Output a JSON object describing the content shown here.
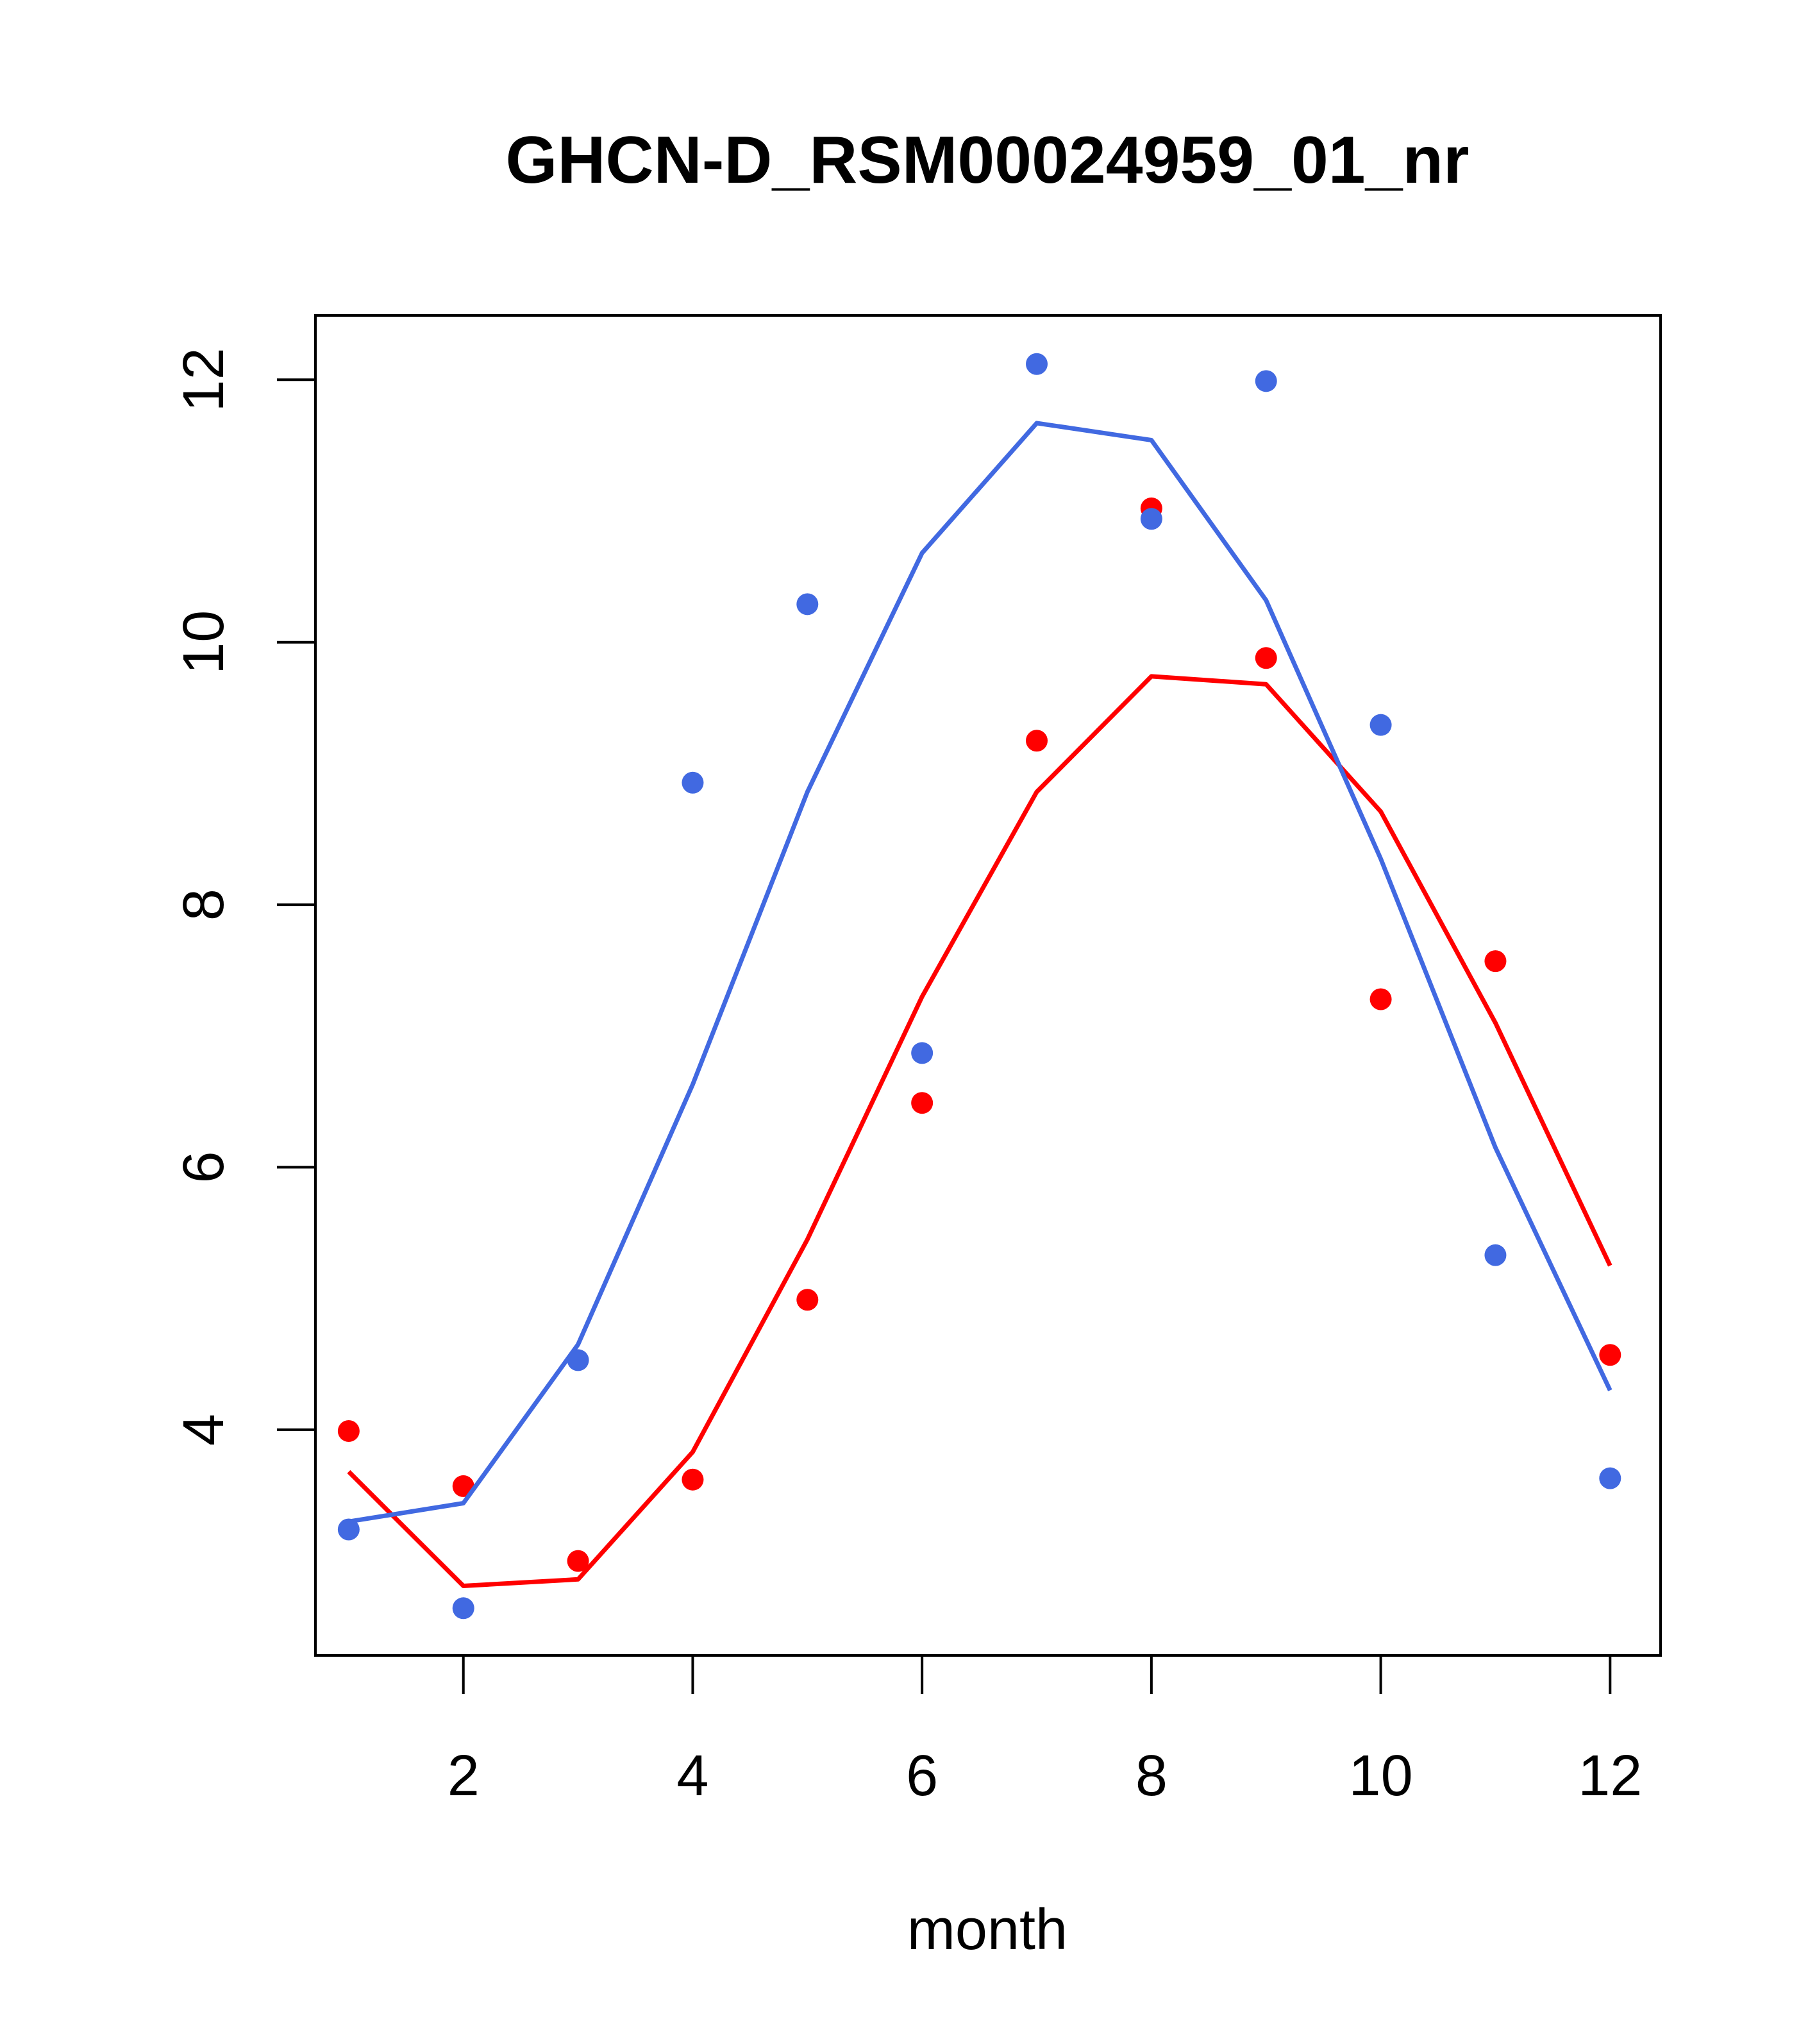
{
  "chart_data": {
    "type": "scatter",
    "title": "GHCN-D_RSM00024959_01_nr",
    "xlabel": "month",
    "ylabel": "",
    "xlim": [
      0.71,
      12.44
    ],
    "ylim": [
      2.28,
      12.49
    ],
    "x_ticks": [
      2,
      4,
      6,
      8,
      10,
      12
    ],
    "y_ticks": [
      4,
      6,
      8,
      10,
      12
    ],
    "grid": false,
    "legend": "none",
    "series": [
      {
        "color": "#ff0000",
        "points_x": [
          1,
          2,
          3,
          4,
          5,
          6,
          7,
          8,
          9,
          10,
          11,
          12
        ],
        "points_y": [
          3.99,
          3.57,
          3.0,
          3.62,
          4.99,
          6.49,
          9.25,
          11.02,
          9.88,
          7.28,
          7.57,
          4.57
        ],
        "line_x": [
          1,
          2,
          3,
          4,
          5,
          6,
          7,
          8,
          9,
          10,
          11,
          12
        ],
        "line_y": [
          3.68,
          2.81,
          2.86,
          3.83,
          5.45,
          7.3,
          8.86,
          9.74,
          9.68,
          8.71,
          7.1,
          5.25
        ]
      },
      {
        "color": "#4169e1",
        "points_x": [
          1,
          2,
          3,
          4,
          5,
          6,
          7,
          8,
          9,
          10,
          11,
          12
        ],
        "points_y": [
          3.24,
          2.64,
          4.53,
          8.93,
          10.29,
          6.87,
          12.12,
          10.94,
          11.99,
          9.37,
          5.33,
          3.63
        ],
        "line_x": [
          1,
          2,
          3,
          4,
          5,
          6,
          7,
          8,
          9,
          10,
          11,
          12
        ],
        "line_y": [
          3.3,
          3.44,
          4.65,
          6.63,
          8.86,
          10.68,
          11.67,
          11.54,
          10.32,
          8.35,
          6.15,
          4.3
        ]
      }
    ]
  }
}
